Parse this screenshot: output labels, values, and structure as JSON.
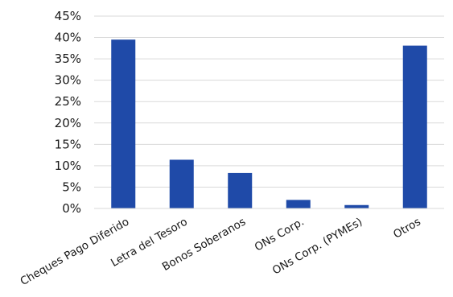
{
  "chart_data": {
    "type": "bar",
    "categories": [
      "Cheques Pago Diferido",
      "Letra del Tesoro",
      "Bonos Soberanos",
      "ONs Corp.",
      "ONs Corp. (PYMEs)",
      "Otros"
    ],
    "values": [
      39.5,
      11.4,
      8.3,
      2.0,
      0.8,
      38.1
    ],
    "y_ticks": [
      "0%",
      "5%",
      "10%",
      "15%",
      "20%",
      "25%",
      "30%",
      "35%",
      "40%",
      "45%"
    ],
    "ylim": [
      0,
      45
    ],
    "grid": true,
    "bar_color": "#1f4aa8",
    "grid_color": "#d9d9d9",
    "title": "",
    "xlabel": "",
    "ylabel": ""
  }
}
